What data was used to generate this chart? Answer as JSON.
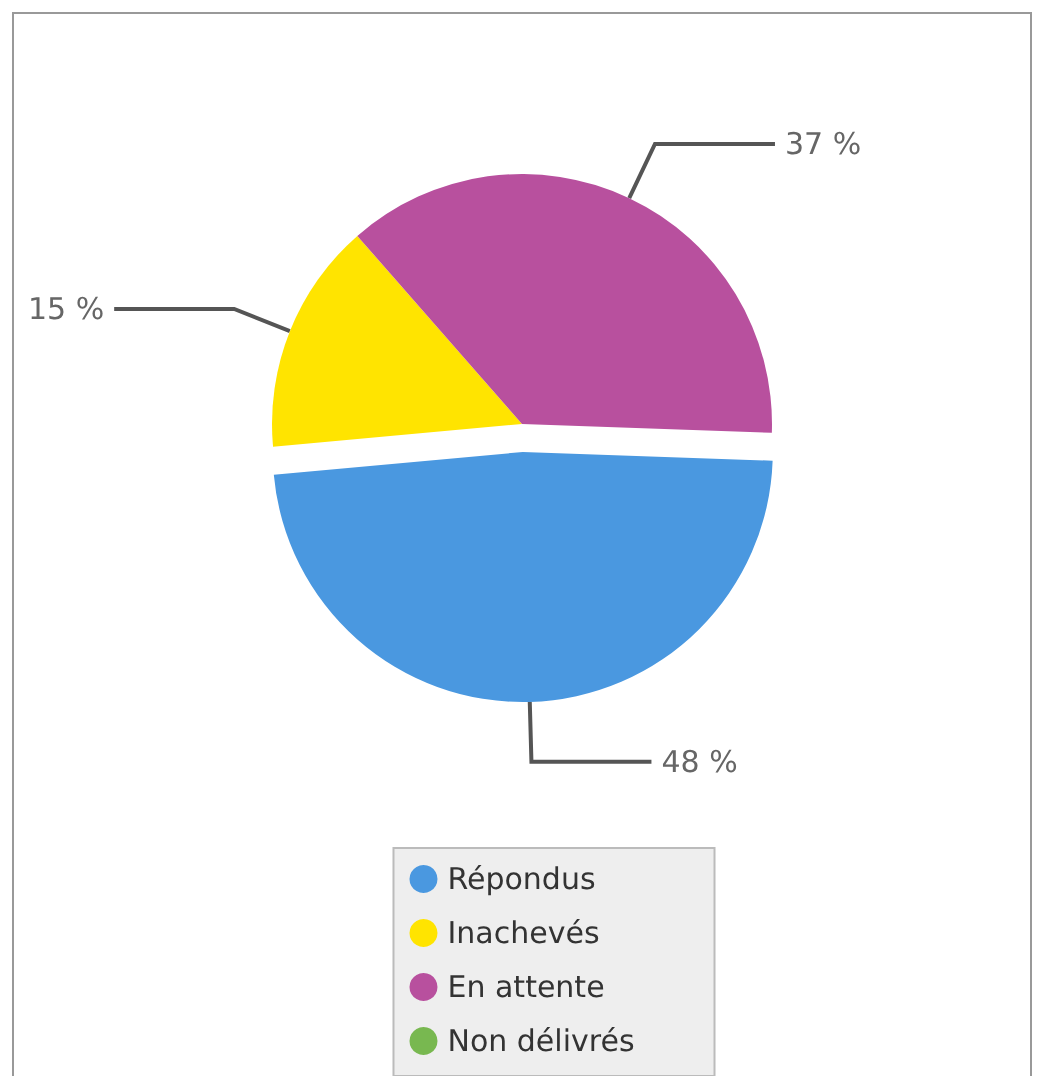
{
  "chart_data": {
    "type": "pie",
    "categories": [
      "Répondus",
      "Inachevés",
      "En attente",
      "Non délivrés"
    ],
    "values": [
      48,
      15,
      37,
      0
    ],
    "colors": [
      "#4a98e0",
      "#ffe400",
      "#b8509e",
      "#78b850"
    ],
    "value_labels": [
      "48 %",
      "15 %",
      "37 %",
      null
    ],
    "legend": "bottom"
  }
}
